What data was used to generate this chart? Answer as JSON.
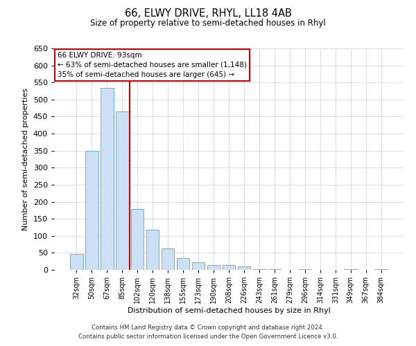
{
  "title": "66, ELWY DRIVE, RHYL, LL18 4AB",
  "subtitle": "Size of property relative to semi-detached houses in Rhyl",
  "xlabel": "Distribution of semi-detached houses by size in Rhyl",
  "ylabel": "Number of semi-detached properties",
  "bar_labels": [
    "32sqm",
    "50sqm",
    "67sqm",
    "85sqm",
    "102sqm",
    "120sqm",
    "138sqm",
    "155sqm",
    "173sqm",
    "190sqm",
    "208sqm",
    "226sqm",
    "243sqm",
    "261sqm",
    "279sqm",
    "296sqm",
    "314sqm",
    "331sqm",
    "349sqm",
    "367sqm",
    "384sqm"
  ],
  "bar_values": [
    46,
    349,
    535,
    465,
    178,
    118,
    62,
    35,
    22,
    15,
    15,
    10,
    3,
    3,
    0,
    3,
    0,
    0,
    3,
    0,
    3
  ],
  "bar_color": "#cce0f5",
  "bar_edge_color": "#6baed6",
  "vline_x_index": 3,
  "vline_color": "#cc0000",
  "annotation_title": "66 ELWY DRIVE: 93sqm",
  "annotation_line1": "← 63% of semi-detached houses are smaller (1,148)",
  "annotation_line2": "35% of semi-detached houses are larger (645) →",
  "annotation_box_color": "#ffffff",
  "annotation_box_edge": "#cc0000",
  "ylim": [
    0,
    650
  ],
  "yticks": [
    0,
    50,
    100,
    150,
    200,
    250,
    300,
    350,
    400,
    450,
    500,
    550,
    600,
    650
  ],
  "footnote1": "Contains HM Land Registry data © Crown copyright and database right 2024.",
  "footnote2": "Contains public sector information licensed under the Open Government Licence v3.0.",
  "bg_color": "#ffffff",
  "grid_color": "#d0d8e8"
}
